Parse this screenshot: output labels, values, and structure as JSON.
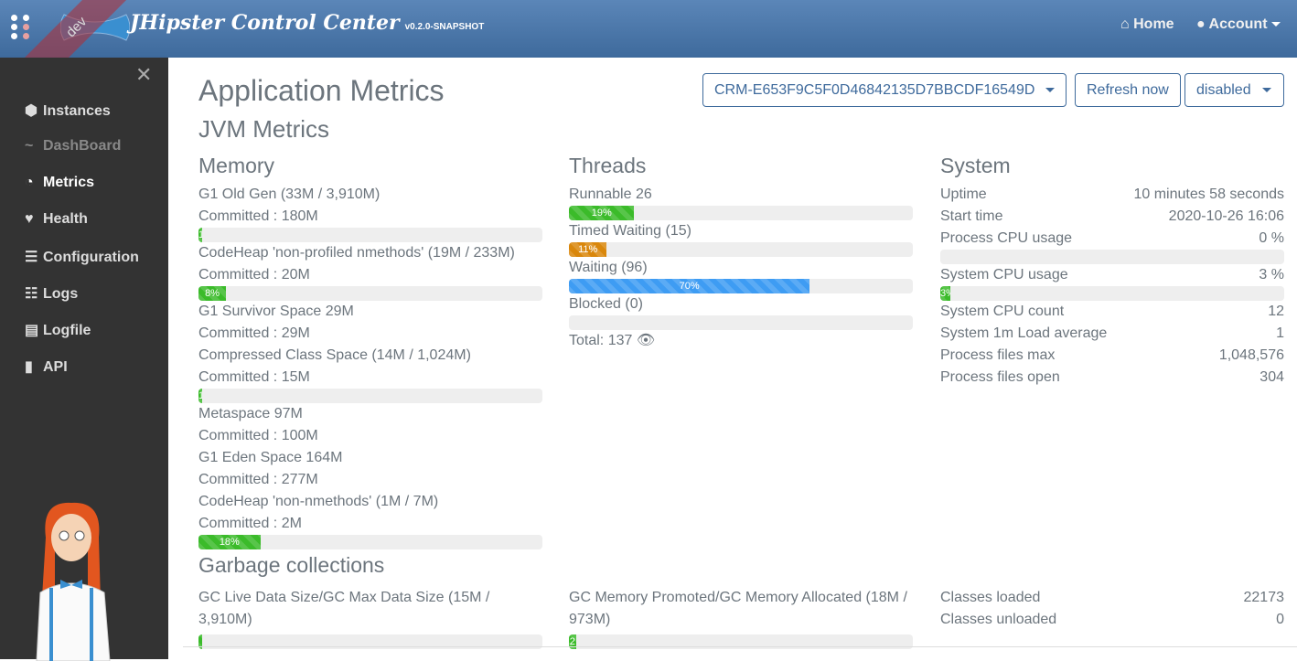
{
  "header": {
    "env_badge": "dev",
    "brand": "JHipster Control Center",
    "version": "v0.2.0-SNAPSHOT",
    "home": "Home",
    "account": "Account"
  },
  "sidebar": {
    "items": [
      {
        "label": "Instances",
        "icon": "cube-icon"
      },
      {
        "label": "DashBoard",
        "icon": "chart-line-icon"
      },
      {
        "label": "Metrics",
        "icon": "tachometer-icon"
      },
      {
        "label": "Health",
        "icon": "heart-icon"
      },
      {
        "label": "Configuration",
        "icon": "list-icon"
      },
      {
        "label": "Logs",
        "icon": "tasks-icon"
      },
      {
        "label": "Logfile",
        "icon": "file-icon"
      },
      {
        "label": "API",
        "icon": "book-icon"
      }
    ]
  },
  "page": {
    "title": "Application Metrics",
    "instance_select": "CRM-E653F9C5F0D46842135D7BBCDF16549D",
    "refresh": "Refresh now",
    "refresh_select": "disabled",
    "jvm_title": "JVM Metrics"
  },
  "memory": {
    "title": "Memory",
    "items": [
      {
        "name": "G1 Old Gen (33M / 3,910M)",
        "committed": "Committed : 180M",
        "percent": 1,
        "label": "1"
      },
      {
        "name": "CodeHeap 'non-profiled nmethods' (19M / 233M)",
        "committed": "Committed : 20M",
        "percent": 8,
        "label": "8%"
      },
      {
        "name": "G1 Survivor Space 29M",
        "committed": "Committed : 29M"
      },
      {
        "name": "Compressed Class Space (14M / 1,024M)",
        "committed": "Committed : 15M",
        "percent": 1,
        "label": "1"
      },
      {
        "name": "Metaspace 97M",
        "committed": "Committed : 100M"
      },
      {
        "name": "G1 Eden Space 164M",
        "committed": "Committed : 277M"
      },
      {
        "name": "CodeHeap 'non-nmethods' (1M / 7M)",
        "committed": "Committed : 2M",
        "percent": 18,
        "label": "18%"
      }
    ]
  },
  "threads": {
    "title": "Threads",
    "items": [
      {
        "name": "Runnable 26",
        "percent": 19,
        "label": "19%",
        "color": "#3bbb2a"
      },
      {
        "name": "Timed Waiting (15)",
        "percent": 11,
        "label": "11%",
        "color": "#d9870c"
      },
      {
        "name": "Waiting (96)",
        "percent": 70,
        "label": "70%",
        "color": "#3e9cf3"
      },
      {
        "name": "Blocked (0)",
        "percent": 0,
        "label": ""
      }
    ],
    "total": "Total: 137"
  },
  "system": {
    "title": "System",
    "rows": [
      {
        "k": "Uptime",
        "v": "10 minutes 58 seconds"
      },
      {
        "k": "Start time",
        "v": "2020-10-26 16:06"
      },
      {
        "k": "Process CPU usage",
        "v": "0 %",
        "percent": 0,
        "label": ""
      },
      {
        "k": "System CPU usage",
        "v": "3 %",
        "percent": 3,
        "label": "3%"
      },
      {
        "k": "System CPU count",
        "v": "12"
      },
      {
        "k": "System 1m Load average",
        "v": "1"
      },
      {
        "k": "Process files max",
        "v": "1,048,576"
      },
      {
        "k": "Process files open",
        "v": "304"
      }
    ]
  },
  "gc": {
    "title": "Garbage collections",
    "live": {
      "name": "GC Live Data Size/GC Max Data Size (15M / 3,910M)",
      "percent": 0,
      "label": ""
    },
    "promoted": {
      "name": "GC Memory Promoted/GC Memory Allocated (18M / 973M)",
      "percent": 2,
      "label": "2"
    },
    "classes": [
      {
        "k": "Classes loaded",
        "v": "22173"
      },
      {
        "k": "Classes unloaded",
        "v": "0"
      }
    ]
  }
}
